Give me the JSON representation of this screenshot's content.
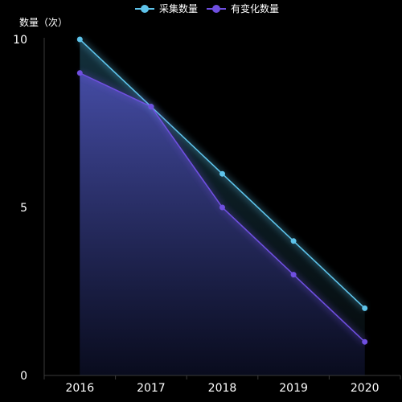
{
  "chart_data": {
    "type": "line",
    "title": "",
    "xlabel": "",
    "ylabel": "数量（次）",
    "ylim": [
      0,
      10
    ],
    "yticks": [
      0,
      5,
      10
    ],
    "categories": [
      "2016",
      "2017",
      "2018",
      "2019",
      "2020"
    ],
    "legend_position": "top-center",
    "grid": false,
    "series": [
      {
        "name": "采集数量",
        "values": [
          10,
          8,
          6,
          4,
          2
        ],
        "color": "#5ec3ea"
      },
      {
        "name": "有变化数量",
        "values": [
          9,
          8,
          5,
          3,
          1
        ],
        "color": "#6f4fe0"
      }
    ]
  }
}
